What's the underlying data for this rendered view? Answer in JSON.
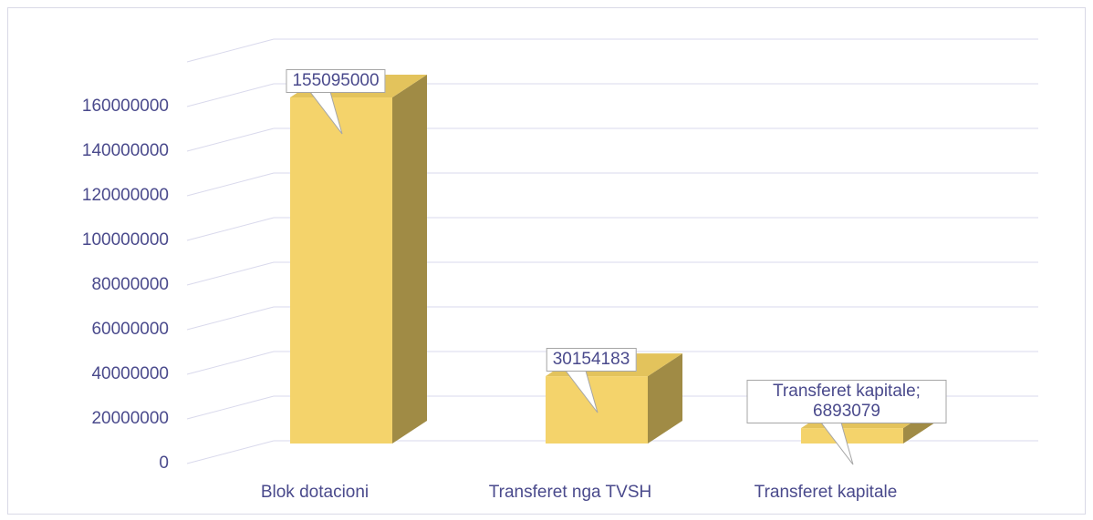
{
  "chart_data": {
    "type": "bar3d",
    "categories": [
      "Blok dotacioni",
      "Transferet nga TVSH",
      "Transferet kapitale"
    ],
    "values": [
      155095000,
      30154183,
      6893079
    ],
    "value_labels": [
      "155095000",
      "30154183",
      "Transferet kapitale; 6893079"
    ],
    "color": "#f4d36b",
    "ylim": [
      0,
      180000000
    ],
    "yticks": [
      0,
      20000000,
      40000000,
      60000000,
      80000000,
      100000000,
      120000000,
      140000000,
      160000000
    ],
    "grid": true
  }
}
